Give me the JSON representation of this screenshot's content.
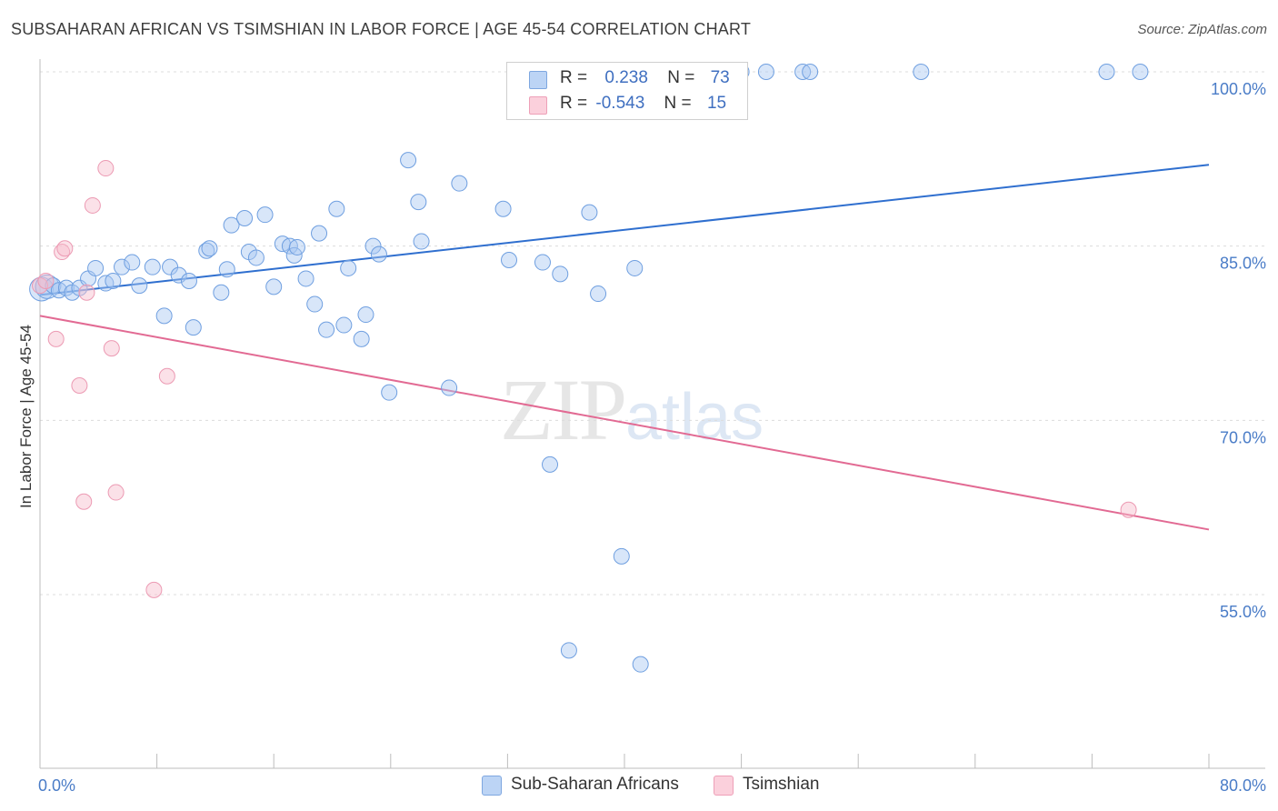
{
  "title": "SUBSAHARAN AFRICAN VS TSIMSHIAN IN LABOR FORCE | AGE 45-54 CORRELATION CHART",
  "source": "Source: ZipAtlas.com",
  "watermark": {
    "zip": "ZIP",
    "atlas": "atlas"
  },
  "legend": {
    "rows": [
      {
        "r_label": "R =",
        "r_value": "0.238",
        "n_label": "N =",
        "n_value": "73",
        "color": "#a9c8f2"
      },
      {
        "r_label": "R =",
        "r_value": "-0.543",
        "n_label": "N =",
        "n_value": "15",
        "color": "#f7bccd"
      }
    ],
    "series": [
      {
        "name": "Sub-Saharan Africans",
        "color": "#a9c8f2"
      },
      {
        "name": "Tsimshian",
        "color": "#f7bccd"
      }
    ]
  },
  "chart_data": {
    "type": "scatter",
    "title": "SUBSAHARAN AFRICAN VS TSIMSHIAN IN LABOR FORCE | AGE 45-54 CORRELATION CHART",
    "xlabel": "",
    "ylabel": "In Labor Force | Age 45-54",
    "xlim": [
      0,
      80
    ],
    "ylim": [
      40,
      102
    ],
    "x_tick_labels": [
      "0.0%",
      "80.0%"
    ],
    "y_ticks": [
      55,
      70,
      85,
      100
    ],
    "y_tick_labels": [
      "55.0%",
      "70.0%",
      "85.0%",
      "100.0%"
    ],
    "grid": true,
    "colors": {
      "blue_point": "#a9c8f2",
      "blue_line": "#2f6fcf",
      "pink_point": "#f7bccd",
      "pink_line": "#e26a93",
      "tick_text": "#4a7cc7"
    },
    "series": [
      {
        "name": "Sub-Saharan Africans",
        "trendline": {
          "x": [
            0,
            80
          ],
          "y": [
            80.8,
            92.0
          ]
        },
        "x": [
          0.1,
          0.5,
          0.9,
          1.3,
          1.8,
          2.2,
          2.7,
          3.3,
          3.8,
          4.5,
          5.0,
          5.6,
          6.3,
          6.8,
          7.7,
          8.5,
          8.9,
          9.5,
          10.2,
          10.5,
          11.4,
          11.6,
          12.4,
          12.8,
          13.1,
          14.0,
          14.3,
          14.8,
          15.4,
          16.0,
          16.6,
          17.1,
          17.4,
          17.6,
          18.2,
          18.8,
          19.1,
          19.6,
          20.3,
          20.8,
          21.1,
          22.0,
          22.3,
          22.8,
          23.2,
          23.9,
          25.2,
          25.9,
          26.1,
          28.0,
          28.7,
          31.7,
          32.1,
          34.4,
          34.9,
          35.6,
          36.2,
          37.6,
          38.2,
          39.8,
          40.7,
          41.1,
          44.3,
          44.6,
          46.3,
          47.6,
          48.0,
          49.7,
          52.2,
          52.7,
          60.3,
          73.0,
          75.3
        ],
        "y": [
          81.3,
          81.5,
          81.6,
          81.2,
          81.4,
          81.0,
          81.4,
          82.2,
          83.1,
          81.8,
          82.0,
          83.2,
          83.6,
          81.6,
          83.2,
          79.0,
          83.2,
          82.5,
          82.0,
          78.0,
          84.6,
          84.8,
          81.0,
          83.0,
          86.8,
          87.4,
          84.5,
          84.0,
          87.7,
          81.5,
          85.2,
          85.0,
          84.2,
          84.9,
          82.2,
          80.0,
          86.1,
          77.8,
          88.2,
          78.2,
          83.1,
          77.0,
          79.1,
          85.0,
          84.3,
          72.4,
          92.4,
          88.8,
          85.4,
          72.8,
          90.4,
          88.2,
          83.8,
          83.6,
          66.2,
          82.6,
          50.2,
          87.9,
          80.9,
          58.3,
          83.1,
          49.0,
          100.0,
          100.0,
          100.0,
          100.0,
          100.0,
          100.0,
          100.0,
          100.0,
          100.0,
          100.0,
          100.0
        ]
      },
      {
        "name": "Tsimshian",
        "trendline": {
          "x": [
            0,
            80
          ],
          "y": [
            79.0,
            60.6
          ]
        },
        "x": [
          0.0,
          0.4,
          1.1,
          1.5,
          1.7,
          2.7,
          3.0,
          3.2,
          3.6,
          4.5,
          4.9,
          5.2,
          7.8,
          8.7,
          74.5
        ],
        "y": [
          81.6,
          82.0,
          77.0,
          84.5,
          84.8,
          73.0,
          63.0,
          81.0,
          88.5,
          91.7,
          76.2,
          63.8,
          55.4,
          73.8,
          62.3
        ]
      }
    ]
  }
}
